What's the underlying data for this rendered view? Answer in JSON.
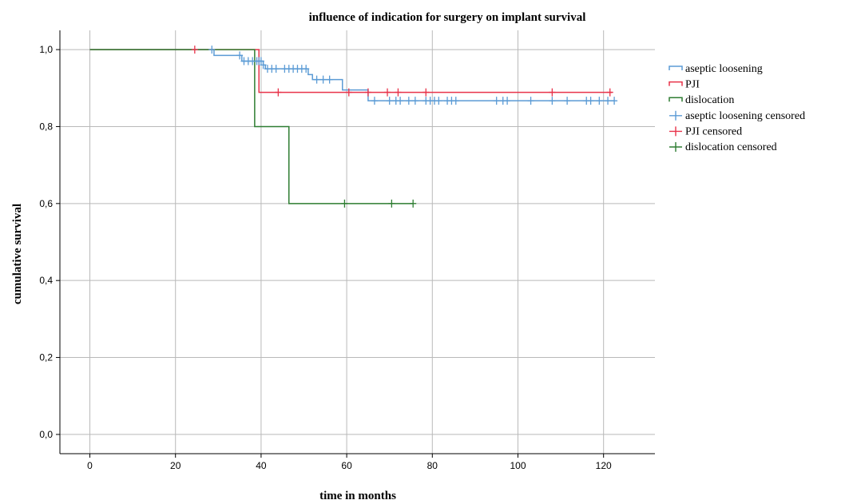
{
  "chart_data": {
    "type": "line",
    "title": "influence of indication for surgery on implant survival",
    "xlabel": "time in months",
    "ylabel": "cumulative survival",
    "xlim": [
      -7,
      132
    ],
    "ylim": [
      -0.05,
      1.05
    ],
    "xticks": [
      0,
      20,
      40,
      60,
      80,
      100,
      120
    ],
    "xtick_labels": [
      "0",
      "20",
      "40",
      "60",
      "80",
      "100",
      "120"
    ],
    "yticks": [
      0.0,
      0.2,
      0.4,
      0.6,
      0.8,
      1.0
    ],
    "ytick_labels": [
      "0,0",
      "0,2",
      "0,4",
      "0,6",
      "0,8",
      "1,0"
    ],
    "grid": true,
    "legend_position": "right",
    "series": [
      {
        "name": "aseptic loosening",
        "censored_name": "aseptic loosening censored",
        "color": "#5b9bd5",
        "steps": [
          [
            0,
            1.0
          ],
          [
            29,
            0.985
          ],
          [
            35.5,
            0.97
          ],
          [
            40.5,
            0.96
          ],
          [
            41,
            0.95
          ],
          [
            51,
            0.935
          ],
          [
            52,
            0.922
          ],
          [
            59,
            0.895
          ],
          [
            65,
            0.867
          ],
          [
            122.5,
            0.867
          ]
        ],
        "censored": [
          [
            28.5,
            1.0
          ],
          [
            35,
            0.985
          ],
          [
            36,
            0.97
          ],
          [
            37,
            0.97
          ],
          [
            38,
            0.97
          ],
          [
            39,
            0.97
          ],
          [
            39.5,
            0.97
          ],
          [
            40,
            0.97
          ],
          [
            40.5,
            0.96
          ],
          [
            41.5,
            0.95
          ],
          [
            42.5,
            0.95
          ],
          [
            43.5,
            0.95
          ],
          [
            45.5,
            0.95
          ],
          [
            46.5,
            0.95
          ],
          [
            47.5,
            0.95
          ],
          [
            48.5,
            0.95
          ],
          [
            49.5,
            0.95
          ],
          [
            50.5,
            0.95
          ],
          [
            53,
            0.922
          ],
          [
            54.5,
            0.922
          ],
          [
            56,
            0.922
          ],
          [
            66.5,
            0.867
          ],
          [
            70,
            0.867
          ],
          [
            71.5,
            0.867
          ],
          [
            72.5,
            0.867
          ],
          [
            74.5,
            0.867
          ],
          [
            76,
            0.867
          ],
          [
            78.5,
            0.867
          ],
          [
            79.5,
            0.867
          ],
          [
            80.5,
            0.867
          ],
          [
            81.5,
            0.867
          ],
          [
            83.5,
            0.867
          ],
          [
            84.5,
            0.867
          ],
          [
            85.5,
            0.867
          ],
          [
            95,
            0.867
          ],
          [
            96.5,
            0.867
          ],
          [
            97.5,
            0.867
          ],
          [
            103,
            0.867
          ],
          [
            108,
            0.867
          ],
          [
            111.5,
            0.867
          ],
          [
            116,
            0.867
          ],
          [
            117,
            0.867
          ],
          [
            119,
            0.867
          ],
          [
            121,
            0.867
          ],
          [
            122.5,
            0.867
          ]
        ]
      },
      {
        "name": "PJI",
        "censored_name": "PJI censored",
        "color": "#e8334a",
        "steps": [
          [
            0,
            1.0
          ],
          [
            39.5,
            0.889
          ],
          [
            122,
            0.889
          ]
        ],
        "censored": [
          [
            24.5,
            1.0
          ],
          [
            44,
            0.889
          ],
          [
            60.5,
            0.889
          ],
          [
            65,
            0.889
          ],
          [
            69.5,
            0.889
          ],
          [
            72,
            0.889
          ],
          [
            78.5,
            0.889
          ],
          [
            108,
            0.889
          ],
          [
            121.5,
            0.889
          ]
        ]
      },
      {
        "name": "dislocation",
        "censored_name": "dislocation censored",
        "color": "#2e7d32",
        "steps": [
          [
            0,
            1.0
          ],
          [
            38.5,
            0.8
          ],
          [
            46.5,
            0.6
          ],
          [
            75.5,
            0.6
          ]
        ],
        "censored": [
          [
            59.5,
            0.6
          ],
          [
            70.5,
            0.6
          ],
          [
            75.5,
            0.6
          ]
        ]
      }
    ]
  }
}
